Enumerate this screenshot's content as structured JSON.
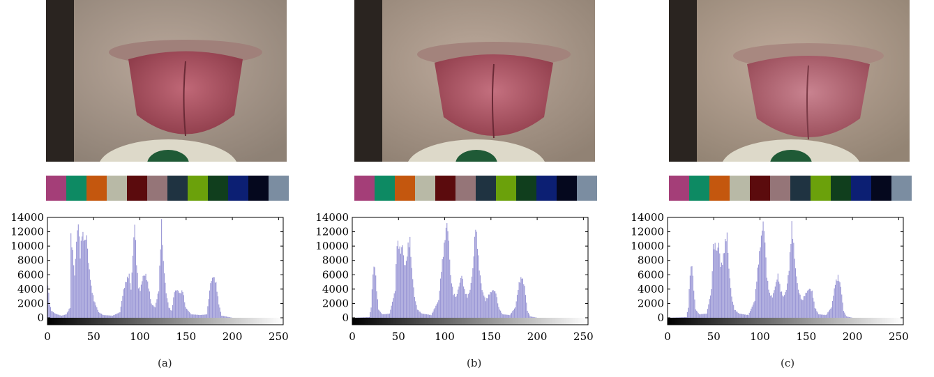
{
  "figure": {
    "panels": [
      {
        "caption": "(a)"
      },
      {
        "caption": "(b)"
      },
      {
        "caption": "(c)"
      }
    ]
  },
  "color_checker": {
    "patches": [
      "#a43e78",
      "#0d8a63",
      "#c4570e",
      "#b8b9a6",
      "#5b0b0d",
      "#957578",
      "#1f3341",
      "#6ba10b",
      "#103e1d",
      "#0c1f73",
      "#05081e",
      "#7b8da1"
    ]
  },
  "chart_data": [
    {
      "type": "bar",
      "panel": "(a)",
      "xlim": [
        0,
        255
      ],
      "ylim": [
        0,
        14000
      ],
      "xticks": [
        0,
        50,
        100,
        150,
        200,
        250
      ],
      "yticks": [
        0,
        2000,
        4000,
        6000,
        8000,
        10000,
        12000,
        14000
      ],
      "bar_color": "#9b98d6",
      "points": [
        [
          0,
          5000
        ],
        [
          2,
          2000
        ],
        [
          4,
          1000
        ],
        [
          8,
          600
        ],
        [
          15,
          300
        ],
        [
          20,
          500
        ],
        [
          24,
          1500
        ],
        [
          25,
          11800
        ],
        [
          27,
          9500
        ],
        [
          29,
          6000
        ],
        [
          31,
          11000
        ],
        [
          33,
          13800
        ],
        [
          35,
          9000
        ],
        [
          37,
          12500
        ],
        [
          40,
          11000
        ],
        [
          42,
          11800
        ],
        [
          44,
          8000
        ],
        [
          47,
          4500
        ],
        [
          50,
          2500
        ],
        [
          55,
          800
        ],
        [
          60,
          400
        ],
        [
          70,
          300
        ],
        [
          78,
          800
        ],
        [
          82,
          4000
        ],
        [
          85,
          5500
        ],
        [
          88,
          6200
        ],
        [
          90,
          4000
        ],
        [
          92,
          9000
        ],
        [
          94,
          13800
        ],
        [
          96,
          8000
        ],
        [
          98,
          4500
        ],
        [
          100,
          4000
        ],
        [
          103,
          6000
        ],
        [
          106,
          6200
        ],
        [
          109,
          4500
        ],
        [
          112,
          2000
        ],
        [
          116,
          1500
        ],
        [
          120,
          4000
        ],
        [
          123,
          13800
        ],
        [
          125,
          8000
        ],
        [
          128,
          3500
        ],
        [
          131,
          1500
        ],
        [
          134,
          1000
        ],
        [
          137,
          3800
        ],
        [
          140,
          4000
        ],
        [
          143,
          3500
        ],
        [
          146,
          4000
        ],
        [
          149,
          1500
        ],
        [
          155,
          500
        ],
        [
          165,
          400
        ],
        [
          172,
          500
        ],
        [
          176,
          5000
        ],
        [
          179,
          6000
        ],
        [
          182,
          5000
        ],
        [
          185,
          2000
        ],
        [
          188,
          300
        ],
        [
          200,
          0
        ],
        [
          255,
          0
        ]
      ]
    },
    {
      "type": "bar",
      "panel": "(b)",
      "xlim": [
        0,
        255
      ],
      "ylim": [
        0,
        14000
      ],
      "xticks": [
        0,
        50,
        100,
        150,
        200,
        250
      ],
      "yticks": [
        0,
        2000,
        4000,
        6000,
        8000,
        10000,
        12000,
        14000
      ],
      "bar_color": "#9b98d6",
      "points": [
        [
          0,
          0
        ],
        [
          18,
          100
        ],
        [
          20,
          1500
        ],
        [
          22,
          6500
        ],
        [
          24,
          7800
        ],
        [
          26,
          4000
        ],
        [
          28,
          1200
        ],
        [
          32,
          500
        ],
        [
          40,
          600
        ],
        [
          46,
          4000
        ],
        [
          48,
          11000
        ],
        [
          50,
          10500
        ],
        [
          52,
          9500
        ],
        [
          54,
          10500
        ],
        [
          56,
          7500
        ],
        [
          58,
          8000
        ],
        [
          60,
          10500
        ],
        [
          62,
          11300
        ],
        [
          64,
          7000
        ],
        [
          67,
          3000
        ],
        [
          70,
          1200
        ],
        [
          75,
          600
        ],
        [
          85,
          400
        ],
        [
          93,
          2500
        ],
        [
          96,
          7000
        ],
        [
          99,
          10500
        ],
        [
          102,
          13800
        ],
        [
          104,
          11000
        ],
        [
          106,
          6000
        ],
        [
          109,
          3500
        ],
        [
          112,
          3000
        ],
        [
          115,
          4500
        ],
        [
          118,
          6200
        ],
        [
          121,
          4000
        ],
        [
          124,
          3000
        ],
        [
          127,
          4000
        ],
        [
          130,
          7000
        ],
        [
          133,
          13500
        ],
        [
          135,
          10500
        ],
        [
          137,
          7000
        ],
        [
          140,
          4000
        ],
        [
          144,
          2500
        ],
        [
          148,
          3500
        ],
        [
          152,
          4000
        ],
        [
          155,
          3600
        ],
        [
          158,
          1500
        ],
        [
          162,
          500
        ],
        [
          170,
          400
        ],
        [
          176,
          1500
        ],
        [
          180,
          5000
        ],
        [
          183,
          6000
        ],
        [
          186,
          4500
        ],
        [
          189,
          1000
        ],
        [
          192,
          200
        ],
        [
          200,
          0
        ],
        [
          255,
          0
        ]
      ]
    },
    {
      "type": "bar",
      "panel": "(c)",
      "xlim": [
        0,
        255
      ],
      "ylim": [
        0,
        14000
      ],
      "xticks": [
        0,
        50,
        100,
        150,
        200,
        250
      ],
      "yticks": [
        0,
        2000,
        4000,
        6000,
        8000,
        10000,
        12000,
        14000
      ],
      "bar_color": "#9b98d6",
      "points": [
        [
          0,
          0
        ],
        [
          20,
          100
        ],
        [
          22,
          1500
        ],
        [
          24,
          6500
        ],
        [
          26,
          7800
        ],
        [
          28,
          4000
        ],
        [
          30,
          1200
        ],
        [
          34,
          500
        ],
        [
          42,
          600
        ],
        [
          47,
          4000
        ],
        [
          49,
          10300
        ],
        [
          51,
          10500
        ],
        [
          53,
          9500
        ],
        [
          55,
          10800
        ],
        [
          57,
          7500
        ],
        [
          59,
          8000
        ],
        [
          62,
          11000
        ],
        [
          64,
          12000
        ],
        [
          66,
          7000
        ],
        [
          69,
          3000
        ],
        [
          72,
          1200
        ],
        [
          77,
          600
        ],
        [
          87,
          400
        ],
        [
          94,
          2500
        ],
        [
          97,
          7000
        ],
        [
          100,
          10500
        ],
        [
          103,
          13800
        ],
        [
          105,
          11000
        ],
        [
          107,
          6000
        ],
        [
          110,
          3500
        ],
        [
          113,
          3000
        ],
        [
          116,
          4500
        ],
        [
          119,
          6200
        ],
        [
          122,
          4000
        ],
        [
          125,
          3000
        ],
        [
          128,
          4000
        ],
        [
          131,
          7000
        ],
        [
          134,
          13500
        ],
        [
          136,
          10500
        ],
        [
          138,
          7000
        ],
        [
          141,
          4000
        ],
        [
          145,
          2500
        ],
        [
          149,
          3500
        ],
        [
          153,
          4200
        ],
        [
          156,
          3800
        ],
        [
          159,
          1500
        ],
        [
          163,
          500
        ],
        [
          171,
          400
        ],
        [
          177,
          1500
        ],
        [
          181,
          5000
        ],
        [
          184,
          6000
        ],
        [
          187,
          4500
        ],
        [
          190,
          1000
        ],
        [
          193,
          200
        ],
        [
          200,
          0
        ],
        [
          255,
          0
        ]
      ]
    }
  ]
}
